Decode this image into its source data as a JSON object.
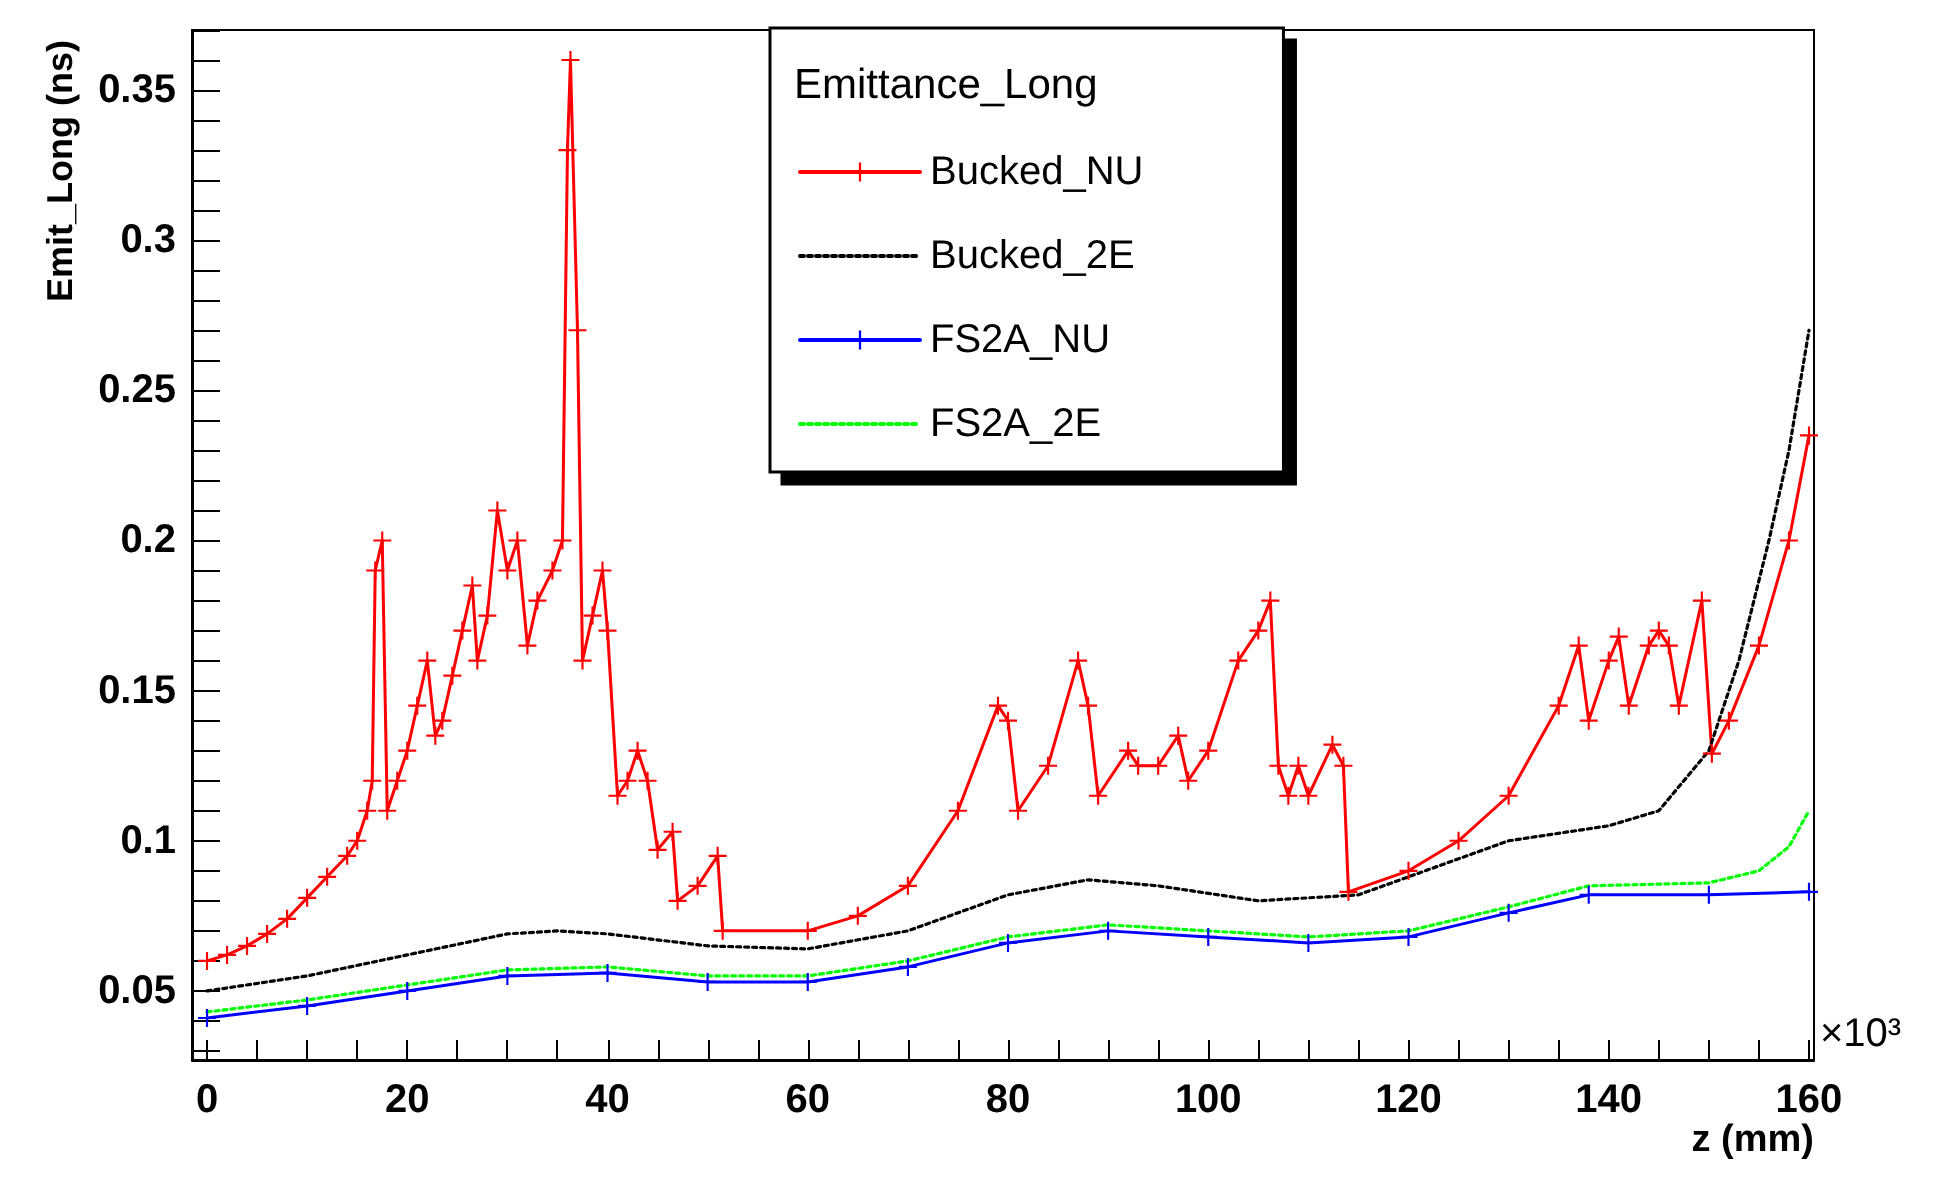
{
  "chart_data": {
    "type": "line",
    "xlabel": "z (mm)",
    "ylabel": "Emit_Long (ns)",
    "legend_title": "Emittance_Long",
    "annotations": [
      "×10³"
    ],
    "xlim": [
      -1.5,
      160.5
    ],
    "xticks": [
      0,
      {
        "value": 5,
        "label": null
      },
      {
        "value": 10,
        "label": null
      },
      {
        "value": 15,
        "label": null
      },
      20,
      {
        "value": 25,
        "label": null
      },
      {
        "value": 30,
        "label": null
      },
      {
        "value": 35,
        "label": null
      },
      40,
      {
        "value": 45,
        "label": null
      },
      {
        "value": 50,
        "label": null
      },
      {
        "value": 55,
        "label": null
      },
      60,
      {
        "value": 65,
        "label": null
      },
      {
        "value": 70,
        "label": null
      },
      {
        "value": 75,
        "label": null
      },
      80,
      {
        "value": 85,
        "label": null
      },
      {
        "value": 90,
        "label": null
      },
      {
        "value": 95,
        "label": null
      },
      100,
      {
        "value": 105,
        "label": null
      },
      {
        "value": 110,
        "label": null
      },
      {
        "value": 115,
        "label": null
      },
      120,
      {
        "value": 125,
        "label": null
      },
      {
        "value": 130,
        "label": null
      },
      {
        "value": 135,
        "label": null
      },
      140,
      {
        "value": 145,
        "label": null
      },
      {
        "value": 150,
        "label": null
      },
      {
        "value": 155,
        "label": null
      },
      160
    ],
    "ylim": [
      0.027,
      0.37
    ],
    "yticks": [
      {
        "value": 0.03,
        "label": null
      },
      {
        "value": 0.04,
        "label": null
      },
      0.05,
      {
        "value": 0.06,
        "label": null
      },
      {
        "value": 0.07,
        "label": null
      },
      {
        "value": 0.08,
        "label": null
      },
      {
        "value": 0.09,
        "label": null
      },
      0.1,
      {
        "value": 0.11,
        "label": null
      },
      {
        "value": 0.12,
        "label": null
      },
      {
        "value": 0.13,
        "label": null
      },
      {
        "value": 0.14,
        "label": null
      },
      0.15,
      {
        "value": 0.16,
        "label": null
      },
      {
        "value": 0.17,
        "label": null
      },
      {
        "value": 0.18,
        "label": null
      },
      {
        "value": 0.19,
        "label": null
      },
      0.2,
      {
        "value": 0.21,
        "label": null
      },
      {
        "value": 0.22,
        "label": null
      },
      {
        "value": 0.23,
        "label": null
      },
      {
        "value": 0.24,
        "label": null
      },
      0.25,
      {
        "value": 0.26,
        "label": null
      },
      {
        "value": 0.27,
        "label": null
      },
      {
        "value": 0.28,
        "label": null
      },
      {
        "value": 0.29,
        "label": null
      },
      0.3,
      {
        "value": 0.31,
        "label": null
      },
      {
        "value": 0.32,
        "label": null
      },
      {
        "value": 0.33,
        "label": null
      },
      {
        "value": 0.34,
        "label": null
      },
      0.35,
      {
        "value": 0.36,
        "label": null
      },
      {
        "value": 0.37,
        "label": null
      }
    ],
    "grid": false,
    "legend": "top right",
    "series": [
      {
        "name": "Bucked_NU",
        "color": "#ff0000",
        "marker": "cross",
        "line_style": "solid",
        "x": [
          0,
          2,
          4,
          6,
          8,
          10,
          12,
          14,
          15,
          16,
          16.5,
          16.8,
          17.5,
          18,
          19,
          20,
          21,
          22,
          22.8,
          23.5,
          24.5,
          25.5,
          26.5,
          27,
          28,
          29,
          30,
          31,
          32,
          33,
          34.5,
          35.5,
          36,
          36.3,
          37,
          37.5,
          38.5,
          39.5,
          40,
          41,
          42,
          43,
          44,
          45,
          46.5,
          47,
          49,
          51,
          51.5,
          60,
          65,
          70,
          75,
          79,
          80,
          81,
          84,
          87,
          88,
          89,
          92,
          93,
          95,
          97,
          98,
          100,
          103,
          105,
          106.2,
          107,
          108,
          109,
          110,
          112.4,
          113.5,
          114,
          120,
          125,
          130,
          135,
          137,
          138,
          140,
          141,
          142,
          144,
          145,
          146,
          147,
          149.3,
          150.3,
          152,
          155,
          158,
          160
        ],
        "values": [
          0.06,
          0.062,
          0.065,
          0.069,
          0.074,
          0.081,
          0.088,
          0.095,
          0.1,
          0.11,
          0.12,
          0.19,
          0.2,
          0.11,
          0.12,
          0.13,
          0.145,
          0.16,
          0.135,
          0.14,
          0.155,
          0.17,
          0.185,
          0.16,
          0.175,
          0.21,
          0.19,
          0.2,
          0.165,
          0.18,
          0.19,
          0.2,
          0.33,
          0.36,
          0.27,
          0.16,
          0.175,
          0.19,
          0.17,
          0.115,
          0.12,
          0.13,
          0.12,
          0.097,
          0.103,
          0.08,
          0.085,
          0.095,
          0.07,
          0.07,
          0.075,
          0.085,
          0.11,
          0.145,
          0.14,
          0.11,
          0.125,
          0.16,
          0.145,
          0.115,
          0.13,
          0.125,
          0.125,
          0.135,
          0.12,
          0.13,
          0.16,
          0.17,
          0.18,
          0.125,
          0.115,
          0.125,
          0.115,
          0.132,
          0.125,
          0.083,
          0.09,
          0.1,
          0.115,
          0.145,
          0.165,
          0.14,
          0.16,
          0.168,
          0.145,
          0.165,
          0.17,
          0.165,
          0.145,
          0.18,
          0.129,
          0.14,
          0.165,
          0.2,
          0.235
        ]
      },
      {
        "name": "Bucked_2E",
        "color": "#000000",
        "marker": "none",
        "line_style": "dotted",
        "x": [
          0,
          10,
          20,
          30,
          35,
          40,
          50,
          60,
          70,
          80,
          88,
          95,
          105,
          115,
          120,
          130,
          140,
          145,
          150,
          153,
          156,
          158,
          160
        ],
        "values": [
          0.05,
          0.055,
          0.062,
          0.069,
          0.07,
          0.069,
          0.065,
          0.064,
          0.07,
          0.082,
          0.087,
          0.085,
          0.08,
          0.082,
          0.088,
          0.1,
          0.105,
          0.11,
          0.13,
          0.16,
          0.2,
          0.23,
          0.27
        ]
      },
      {
        "name": "FS2A_NU",
        "color": "#0000ff",
        "marker": "cross",
        "line_style": "solid",
        "x": [
          0,
          10,
          20,
          30,
          40,
          50,
          60,
          70,
          80,
          90,
          100,
          110,
          120,
          130,
          138,
          150,
          160
        ],
        "values": [
          0.041,
          0.045,
          0.05,
          0.055,
          0.056,
          0.053,
          0.053,
          0.058,
          0.066,
          0.07,
          0.068,
          0.066,
          0.068,
          0.076,
          0.082,
          0.082,
          0.083
        ]
      },
      {
        "name": "FS2A_2E",
        "color": "#00ff00",
        "marker": "none",
        "line_style": "dotted",
        "x": [
          0,
          10,
          20,
          30,
          40,
          50,
          60,
          70,
          80,
          90,
          100,
          110,
          120,
          130,
          138,
          150,
          155,
          158,
          160
        ],
        "values": [
          0.043,
          0.047,
          0.052,
          0.057,
          0.058,
          0.055,
          0.055,
          0.06,
          0.068,
          0.072,
          0.07,
          0.068,
          0.07,
          0.078,
          0.085,
          0.086,
          0.09,
          0.098,
          0.11
        ]
      }
    ]
  }
}
